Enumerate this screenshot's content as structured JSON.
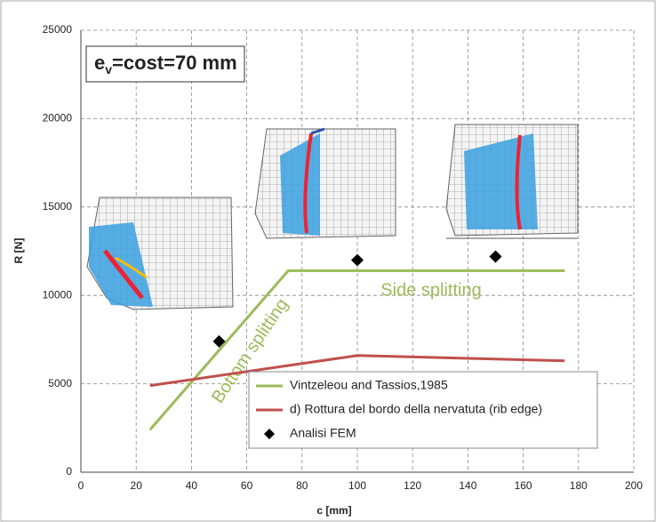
{
  "chart_data": {
    "type": "line",
    "annotation": {
      "main": "e",
      "subscript": "v",
      "rest": "=cost=70 mm"
    },
    "region_labels": [
      "Bottom splitting",
      "Side splitting"
    ],
    "xlabel": "c [mm]",
    "ylabel": "R [N]",
    "xlim": [
      0,
      200
    ],
    "xticks": [
      0,
      20,
      40,
      60,
      80,
      100,
      120,
      140,
      160,
      180,
      200
    ],
    "ylim": [
      0,
      25000
    ],
    "yticks": [
      0,
      5000,
      10000,
      15000,
      20000,
      25000
    ],
    "grid": true,
    "legend": "bottom-right",
    "series": [
      {
        "name": "Vintzeleou and Tassios,1985",
        "color": "#9bbb59",
        "style": "line",
        "x": [
          25,
          75,
          175
        ],
        "values": [
          2400,
          11400,
          11400
        ]
      },
      {
        "name": "d) Rottura del bordo della nervatuta (rib edge)",
        "color": "#c0504d",
        "style": "line",
        "x": [
          25,
          100,
          175
        ],
        "values": [
          4900,
          6600,
          6300
        ]
      },
      {
        "name": "Analisi FEM",
        "color": "#000000",
        "style": "marker",
        "x": [
          50,
          100,
          150
        ],
        "values": [
          7400,
          12000,
          12200
        ]
      }
    ]
  }
}
